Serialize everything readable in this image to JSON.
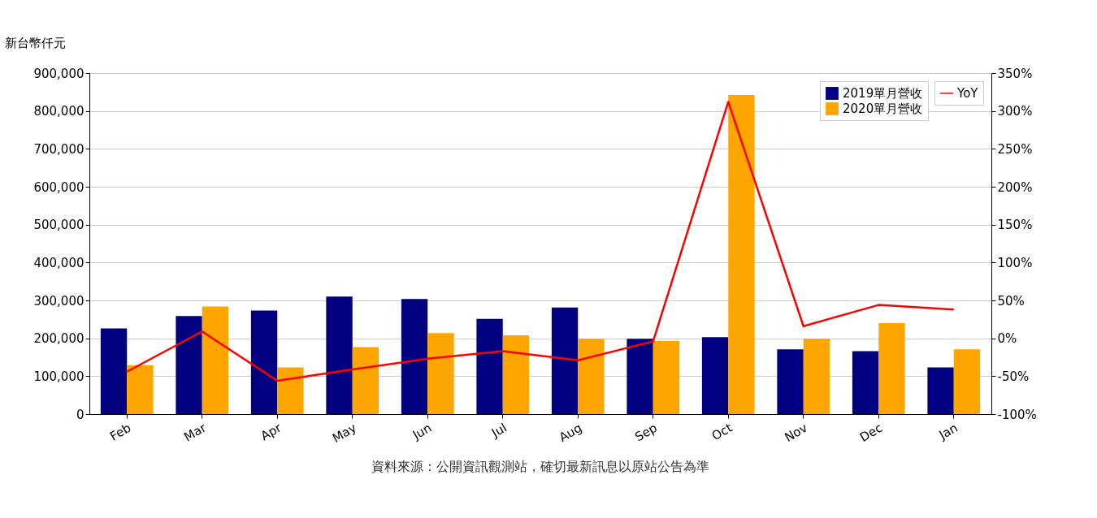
{
  "chart_data": {
    "type": "bar",
    "ylabel": "新台幣仟元",
    "categories": [
      "Feb",
      "Mar",
      "Apr",
      "May",
      "Jun",
      "Jul",
      "Aug",
      "Sep",
      "Oct",
      "Nov",
      "Dec",
      "Jan"
    ],
    "series": [
      {
        "name": "2019單月營收",
        "color": "#000080",
        "values": [
          226000,
          259000,
          273000,
          310000,
          304000,
          251000,
          281000,
          199000,
          203000,
          171000,
          166000,
          123000
        ]
      },
      {
        "name": "2020單月營收",
        "color": "#ffa500",
        "values": [
          129000,
          284000,
          123000,
          177000,
          214000,
          208000,
          199000,
          193000,
          842000,
          199000,
          240000,
          171000
        ]
      },
      {
        "name": "YoY",
        "type": "line",
        "axis": "y2",
        "color": "#ff0000",
        "values": [
          -44,
          9,
          -56,
          -41,
          -27,
          -17,
          -29,
          -4,
          312,
          16,
          44,
          38
        ]
      }
    ],
    "ylim": [
      0,
      900000
    ],
    "yticks": [
      0,
      {
        "value": 100000,
        "label": "100,000"
      },
      {
        "value": 200000,
        "label": "200,000"
      },
      {
        "value": 300000,
        "label": "300,000"
      },
      {
        "value": 400000,
        "label": "400,000"
      },
      {
        "value": 500000,
        "label": "500,000"
      },
      {
        "value": 600000,
        "label": "600,000"
      },
      {
        "value": 700000,
        "label": "700,000"
      },
      {
        "value": 800000,
        "label": "800,000"
      },
      {
        "value": 900000,
        "label": "900,000"
      }
    ],
    "y2lim": [
      -100,
      350
    ],
    "y2ticks": [
      {
        "value": -100,
        "label": "-100%"
      },
      {
        "value": -50,
        "label": "-50%"
      },
      {
        "value": 0,
        "label": "0%"
      },
      {
        "value": 50,
        "label": "50%"
      },
      {
        "value": 100,
        "label": "100%"
      },
      {
        "value": 150,
        "label": "150%"
      },
      {
        "value": 200,
        "label": "200%"
      },
      {
        "value": 250,
        "label": "250%"
      },
      {
        "value": 300,
        "label": "300%"
      },
      {
        "value": 350,
        "label": "350%"
      }
    ],
    "grid": "y",
    "legend": "top right",
    "line_style": "solid",
    "marker": "none",
    "annotations": [
      "資料來源：公開資訊觀測站，確切最新訊息以原站公告為準"
    ]
  }
}
